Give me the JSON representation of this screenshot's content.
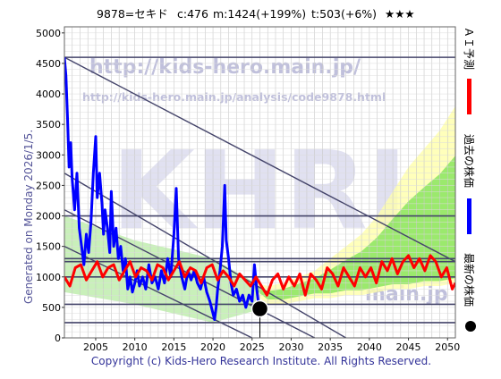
{
  "header": {
    "ticker": "9878=セキド",
    "current": "c:476",
    "max": "m:1424(+199%)",
    "target": "t:503(+6%)",
    "stars": "★★★"
  },
  "side_label": "Generated on Monday 2026/1/5.",
  "watermark": {
    "url_large": "http://kids-hero.main.jp/",
    "url_small": "http://kids-hero.main.jp/analysis/code9878.html",
    "big": "KHRI",
    "bottom_right": "main.jp"
  },
  "legend": [
    {
      "label": "ＡＩ予測",
      "color": "#ff0000"
    },
    {
      "label": "過去の株価",
      "color": "#0000ff"
    },
    {
      "label": "最新の株価",
      "color": "#000000"
    }
  ],
  "copyright": "Copyright (c) Kids-Hero Research Institute. All Rights Reserved.",
  "chart_data": {
    "type": "line",
    "xlim": [
      2001,
      2051
    ],
    "ylim": [
      0,
      5100
    ],
    "x_ticks": [
      2005,
      2010,
      2015,
      2020,
      2025,
      2030,
      2035,
      2040,
      2045,
      2050
    ],
    "y_ticks": [
      0,
      500,
      1000,
      1500,
      2000,
      2500,
      3000,
      3500,
      4000,
      4500,
      5000
    ],
    "grid": true,
    "series": [
      {
        "name": "過去の株価",
        "color": "#0000ff",
        "points": [
          [
            2001.0,
            4600
          ],
          [
            2001.2,
            4300
          ],
          [
            2001.4,
            3600
          ],
          [
            2001.6,
            2800
          ],
          [
            2001.8,
            3200
          ],
          [
            2002.0,
            2600
          ],
          [
            2002.3,
            2100
          ],
          [
            2002.6,
            2700
          ],
          [
            2002.9,
            1800
          ],
          [
            2003.2,
            1500
          ],
          [
            2003.5,
            1200
          ],
          [
            2003.8,
            1700
          ],
          [
            2004.1,
            1400
          ],
          [
            2004.4,
            1900
          ],
          [
            2004.7,
            2700
          ],
          [
            2005.0,
            3300
          ],
          [
            2005.2,
            2300
          ],
          [
            2005.5,
            2700
          ],
          [
            2005.8,
            2200
          ],
          [
            2006.0,
            1700
          ],
          [
            2006.2,
            2100
          ],
          [
            2006.5,
            1800
          ],
          [
            2006.8,
            1400
          ],
          [
            2007.0,
            2400
          ],
          [
            2007.3,
            1500
          ],
          [
            2007.6,
            1800
          ],
          [
            2007.9,
            1300
          ],
          [
            2008.2,
            1500
          ],
          [
            2008.5,
            1100
          ],
          [
            2008.8,
            1300
          ],
          [
            2009.1,
            800
          ],
          [
            2009.4,
            1000
          ],
          [
            2009.7,
            750
          ],
          [
            2010.0,
            900
          ],
          [
            2010.3,
            1100
          ],
          [
            2010.6,
            850
          ],
          [
            2011.0,
            1000
          ],
          [
            2011.4,
            800
          ],
          [
            2011.8,
            1200
          ],
          [
            2012.2,
            900
          ],
          [
            2012.6,
            1000
          ],
          [
            2013.0,
            800
          ],
          [
            2013.4,
            1100
          ],
          [
            2013.8,
            900
          ],
          [
            2014.2,
            1300
          ],
          [
            2014.6,
            1000
          ],
          [
            2015.0,
            1700
          ],
          [
            2015.3,
            2450
          ],
          [
            2015.6,
            1300
          ],
          [
            2016.0,
            1000
          ],
          [
            2016.4,
            800
          ],
          [
            2016.8,
            1100
          ],
          [
            2017.2,
            950
          ],
          [
            2017.6,
            1100
          ],
          [
            2018.0,
            900
          ],
          [
            2018.4,
            800
          ],
          [
            2018.8,
            1000
          ],
          [
            2019.2,
            750
          ],
          [
            2019.6,
            600
          ],
          [
            2020.0,
            400
          ],
          [
            2020.2,
            300
          ],
          [
            2020.4,
            500
          ],
          [
            2020.6,
            800
          ],
          [
            2020.9,
            1100
          ],
          [
            2021.2,
            1500
          ],
          [
            2021.5,
            2500
          ],
          [
            2021.7,
            1600
          ],
          [
            2022.0,
            1300
          ],
          [
            2022.3,
            900
          ],
          [
            2022.6,
            700
          ],
          [
            2023.0,
            800
          ],
          [
            2023.4,
            600
          ],
          [
            2023.8,
            700
          ],
          [
            2024.2,
            500
          ],
          [
            2024.6,
            700
          ],
          [
            2025.0,
            600
          ],
          [
            2025.3,
            1200
          ],
          [
            2025.6,
            800
          ],
          [
            2025.9,
            476
          ]
        ]
      },
      {
        "name": "ＡＩ予測",
        "color": "#ff0000",
        "points": [
          [
            2001.0,
            1000
          ],
          [
            2001.7,
            850
          ],
          [
            2002.4,
            1150
          ],
          [
            2003.1,
            1200
          ],
          [
            2003.8,
            950
          ],
          [
            2004.5,
            1100
          ],
          [
            2005.2,
            1250
          ],
          [
            2005.9,
            1000
          ],
          [
            2006.6,
            1150
          ],
          [
            2007.3,
            1200
          ],
          [
            2008.0,
            950
          ],
          [
            2008.7,
            1100
          ],
          [
            2009.4,
            1250
          ],
          [
            2010.1,
            1000
          ],
          [
            2010.8,
            1150
          ],
          [
            2011.5,
            1100
          ],
          [
            2012.2,
            950
          ],
          [
            2012.9,
            1200
          ],
          [
            2013.6,
            1150
          ],
          [
            2014.3,
            950
          ],
          [
            2015.0,
            1100
          ],
          [
            2015.7,
            1250
          ],
          [
            2016.4,
            1000
          ],
          [
            2017.1,
            1150
          ],
          [
            2017.8,
            1100
          ],
          [
            2018.5,
            900
          ],
          [
            2019.2,
            1150
          ],
          [
            2019.9,
            1200
          ],
          [
            2020.6,
            950
          ],
          [
            2021.3,
            1100
          ],
          [
            2022.0,
            1000
          ],
          [
            2022.7,
            850
          ],
          [
            2023.4,
            1050
          ],
          [
            2024.1,
            950
          ],
          [
            2024.8,
            850
          ],
          [
            2025.5,
            1000
          ],
          [
            2026.2,
            850
          ],
          [
            2026.9,
            700
          ],
          [
            2027.6,
            950
          ],
          [
            2028.3,
            1050
          ],
          [
            2029.0,
            800
          ],
          [
            2029.7,
            1000
          ],
          [
            2030.4,
            850
          ],
          [
            2031.1,
            1050
          ],
          [
            2031.8,
            700
          ],
          [
            2032.5,
            1050
          ],
          [
            2033.2,
            950
          ],
          [
            2033.9,
            800
          ],
          [
            2034.6,
            1150
          ],
          [
            2035.3,
            1050
          ],
          [
            2036.0,
            850
          ],
          [
            2036.7,
            1150
          ],
          [
            2037.4,
            1000
          ],
          [
            2038.1,
            850
          ],
          [
            2038.8,
            1150
          ],
          [
            2039.5,
            1000
          ],
          [
            2040.2,
            1150
          ],
          [
            2040.9,
            900
          ],
          [
            2041.6,
            1250
          ],
          [
            2042.3,
            1100
          ],
          [
            2042.9,
            1300
          ],
          [
            2043.6,
            1050
          ],
          [
            2044.3,
            1250
          ],
          [
            2045.0,
            1350
          ],
          [
            2045.7,
            1150
          ],
          [
            2046.4,
            1300
          ],
          [
            2047.1,
            1100
          ],
          [
            2047.8,
            1350
          ],
          [
            2048.5,
            1250
          ],
          [
            2049.2,
            1000
          ],
          [
            2049.9,
            1150
          ],
          [
            2050.6,
            800
          ],
          [
            2051.0,
            900
          ]
        ]
      }
    ],
    "latest_point": {
      "x": 2026.0,
      "y": 476,
      "color": "#000000"
    },
    "forecast_band": {
      "start": 2025.5,
      "upper": [
        [
          2025.5,
          900
        ],
        [
          2027,
          850
        ],
        [
          2029,
          900
        ],
        [
          2031,
          1000
        ],
        [
          2033,
          1100
        ],
        [
          2035,
          1300
        ],
        [
          2037,
          1500
        ],
        [
          2039,
          1700
        ],
        [
          2041,
          2000
        ],
        [
          2043,
          2400
        ],
        [
          2045,
          2800
        ],
        [
          2047,
          3100
        ],
        [
          2049,
          3400
        ],
        [
          2051,
          3800
        ]
      ],
      "lower": [
        [
          2025.5,
          700
        ],
        [
          2027,
          550
        ],
        [
          2029,
          550
        ],
        [
          2031,
          600
        ],
        [
          2033,
          650
        ],
        [
          2035,
          650
        ],
        [
          2037,
          700
        ],
        [
          2039,
          700
        ],
        [
          2041,
          750
        ],
        [
          2043,
          800
        ],
        [
          2045,
          800
        ],
        [
          2047,
          850
        ],
        [
          2049,
          850
        ],
        [
          2051,
          900
        ]
      ]
    },
    "horizontal_lines": [
      4600,
      2000,
      1300,
      1250,
      1000,
      550,
      250
    ],
    "trend_lines": [
      {
        "x1": 2001,
        "y1": 4600,
        "x2": 2051,
        "y2": 1250
      },
      {
        "x1": 2001,
        "y1": 2100,
        "x2": 2033,
        "y2": 0
      },
      {
        "x1": 2001,
        "y1": 1500,
        "x2": 2025,
        "y2": 0
      },
      {
        "x1": 2001,
        "y1": 2700,
        "x2": 2037,
        "y2": 0
      }
    ]
  }
}
